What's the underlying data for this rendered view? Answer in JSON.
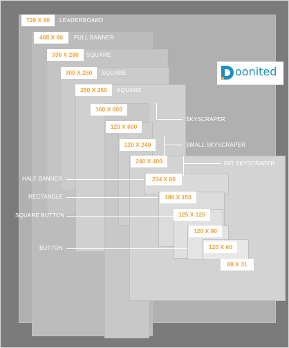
{
  "brand": {
    "name": "oonited"
  },
  "ads": [
    {
      "key": "leaderboard",
      "size": "728 X 90",
      "label": "LEADERBOARD"
    },
    {
      "key": "full_banner",
      "size": "468 X 60",
      "label": "FULL BANNER"
    },
    {
      "key": "square_336",
      "size": "336 X 280",
      "label": "SQUARE"
    },
    {
      "key": "square_300",
      "size": "300 X 250",
      "label": "SQUARE"
    },
    {
      "key": "square_250",
      "size": "250 X 250",
      "label": "SQUARE"
    },
    {
      "key": "skyscraper",
      "size": "160 X 600"
    },
    {
      "key": "small_skyscraper",
      "size": "120 X 600"
    },
    {
      "key": "small_120_240",
      "size": "120 X 240"
    },
    {
      "key": "fat_skyscraper",
      "size": "240 X 400"
    },
    {
      "key": "half_banner",
      "size": "234 X 60"
    },
    {
      "key": "rectangle",
      "size": "180 X 150"
    },
    {
      "key": "square_button",
      "size": "125 X 125"
    },
    {
      "key": "button_120_90",
      "size": "120 X 90"
    },
    {
      "key": "button_120_60",
      "size": "120 X 60"
    },
    {
      "key": "micro_88_31",
      "size": "88 X 31"
    }
  ],
  "side_labels": {
    "skyscraper": "SKYSCRAPER",
    "small_skyscraper": "SMALL SKYSCRAPER",
    "fat_skyscraper": "FAT SKYSCRAPER",
    "half_banner": "HALF BANNER",
    "rectangle": "RECTANGLE",
    "square_button": "SQUARE BUTTON",
    "button": "BUTTON"
  },
  "colors": {
    "background": "#7b7b7b",
    "tag_text": "#f0a23a",
    "box_fill": "#d3d3d3",
    "brand_blue": "#1f8fbf"
  }
}
